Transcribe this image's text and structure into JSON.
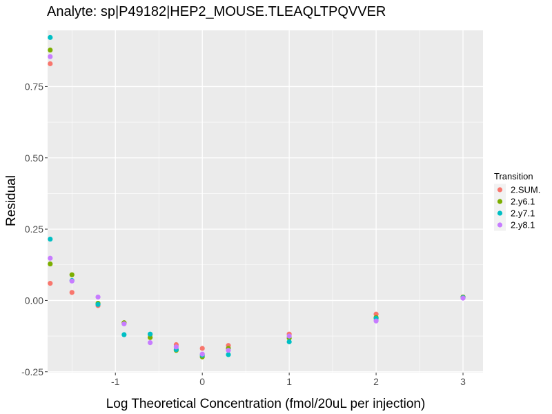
{
  "chart_data": {
    "type": "scatter",
    "title": "Analyte: sp|P49182|HEP2_MOUSE.TLEAQLTPQVVER",
    "xlabel": "Log Theoretical Concentration (fmol/20uL per injection)",
    "ylabel": "Residual",
    "xlim": [
      -1.78,
      3.23
    ],
    "ylim": [
      -0.253,
      0.947
    ],
    "x_ticks": [
      -1,
      0,
      1,
      2,
      3
    ],
    "x_tick_labels": [
      "-1",
      "0",
      "1",
      "2",
      "3"
    ],
    "y_ticks": [
      -0.25,
      0.0,
      0.25,
      0.5,
      0.75
    ],
    "y_tick_labels": [
      "-0.25",
      "0.00",
      "0.25",
      "0.50",
      "0.75"
    ],
    "grid": true,
    "legend_title": "Transition",
    "legend_position": "right",
    "series": [
      {
        "name": "2.SUM.",
        "color": "#F8766D",
        "points": [
          [
            -1.75,
            0.83
          ],
          [
            -1.75,
            0.06
          ],
          [
            -1.5,
            0.028
          ],
          [
            -1.2,
            -0.018
          ],
          [
            -0.9,
            -0.08
          ],
          [
            -0.6,
            -0.12
          ],
          [
            -0.3,
            -0.155
          ],
          [
            0.0,
            -0.168
          ],
          [
            0.3,
            -0.158
          ],
          [
            1.0,
            -0.118
          ],
          [
            2.0,
            -0.048
          ],
          [
            3.0,
            0.012
          ]
        ]
      },
      {
        "name": "2.y6.1",
        "color": "#7CAE00",
        "points": [
          [
            -1.75,
            0.878
          ],
          [
            -1.75,
            0.128
          ],
          [
            -1.5,
            0.09
          ],
          [
            -1.2,
            -0.01
          ],
          [
            -0.9,
            -0.078
          ],
          [
            -0.6,
            -0.13
          ],
          [
            -0.3,
            -0.175
          ],
          [
            0.0,
            -0.198
          ],
          [
            0.3,
            -0.168
          ],
          [
            1.0,
            -0.132
          ],
          [
            2.0,
            -0.06
          ],
          [
            3.0,
            0.012
          ]
        ]
      },
      {
        "name": "2.y7.1",
        "color": "#00BFC4",
        "points": [
          [
            -1.75,
            0.922
          ],
          [
            -1.75,
            0.215
          ],
          [
            -1.5,
            0.07
          ],
          [
            -1.2,
            -0.014
          ],
          [
            -0.9,
            -0.12
          ],
          [
            -0.6,
            -0.118
          ],
          [
            -0.3,
            -0.172
          ],
          [
            0.0,
            -0.192
          ],
          [
            0.3,
            -0.19
          ],
          [
            1.0,
            -0.145
          ],
          [
            2.0,
            -0.063
          ],
          [
            3.0,
            0.01
          ]
        ]
      },
      {
        "name": "2.y8.1",
        "color": "#C77CFF",
        "points": [
          [
            -1.75,
            0.855
          ],
          [
            -1.75,
            0.148
          ],
          [
            -1.5,
            0.068
          ],
          [
            -1.2,
            0.012
          ],
          [
            -0.9,
            -0.082
          ],
          [
            -0.6,
            -0.148
          ],
          [
            -0.3,
            -0.163
          ],
          [
            0.0,
            -0.188
          ],
          [
            0.3,
            -0.175
          ],
          [
            1.0,
            -0.125
          ],
          [
            2.0,
            -0.072
          ],
          [
            3.0,
            0.008
          ]
        ]
      }
    ]
  }
}
